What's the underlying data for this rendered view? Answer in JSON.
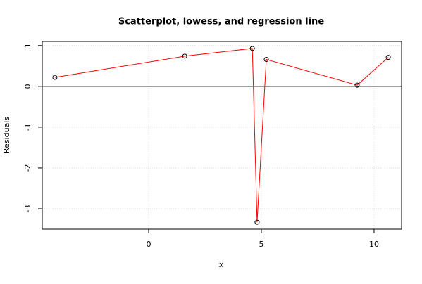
{
  "chart_data": {
    "type": "scatter",
    "title": "Scatterplot, lowess, and regression line",
    "xlabel": "x",
    "ylabel": "Residuals",
    "x": [
      -4.16,
      1.6,
      4.6,
      4.81,
      5.22,
      9.25,
      10.63
    ],
    "values": [
      0.22,
      0.74,
      0.93,
      -3.33,
      0.66,
      0.03,
      0.71
    ],
    "point_color": "#000000",
    "line_color": "#ff0000",
    "reference_line": 0,
    "reference_color": "#000000",
    "xlim": [
      -4.72,
      11.22
    ],
    "xticks": [
      0,
      5,
      10
    ],
    "ylim": [
      -3.5,
      1.1
    ],
    "yticks": [
      -3,
      -2,
      -1,
      0,
      1
    ],
    "grid": true
  }
}
